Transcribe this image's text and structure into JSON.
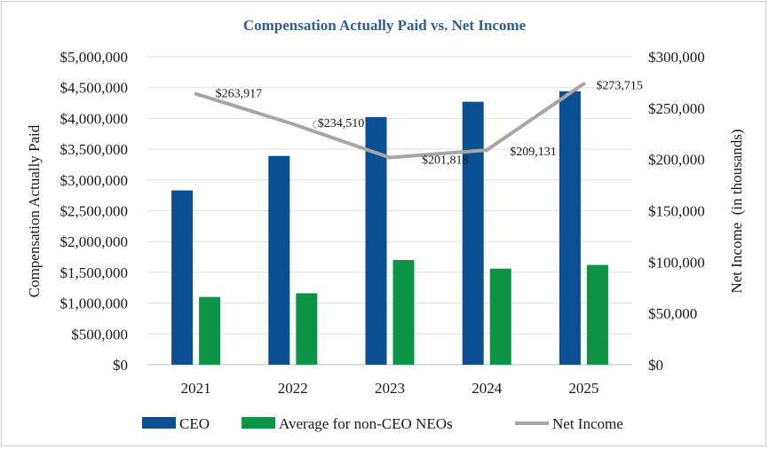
{
  "chart_data": {
    "type": "bar",
    "title": "Compensation Actually Paid vs. Net Income",
    "categories": [
      "2021",
      "2022",
      "2023",
      "2024",
      "2025"
    ],
    "ylabel": "Compensation Actually Paid",
    "y2label": "Net Income  (in thousands)",
    "ylim": [
      0,
      5000000
    ],
    "y2lim": [
      0,
      300000
    ],
    "y_ticks": [
      "$0",
      "$500,000",
      "$1,000,000",
      "$1,500,000",
      "$2,000,000",
      "$2,500,000",
      "$3,000,000",
      "$3,500,000",
      "$4,000,000",
      "$4,500,000",
      "$5,000,000"
    ],
    "y2_ticks": [
      "$0",
      "$50,000",
      "$100,000",
      "$150,000",
      "$200,000",
      "$250,000",
      "$300,000"
    ],
    "grid": true,
    "legend_position": "bottom",
    "series": [
      {
        "name": "CEO",
        "type": "bar",
        "axis": "left",
        "color": "#0a4f94",
        "values": [
          2830000,
          3390000,
          4020000,
          4270000,
          4440000
        ]
      },
      {
        "name": "Average for non-CEO NEOs",
        "type": "bar",
        "axis": "left",
        "color": "#0c9445",
        "values": [
          1100000,
          1160000,
          1700000,
          1560000,
          1620000
        ]
      },
      {
        "name": "Net Income",
        "type": "line",
        "axis": "right",
        "color": "#a6a6a6",
        "values": [
          263917,
          234510,
          201818,
          209131,
          273715
        ],
        "labels": [
          "$263,917",
          "$234,510",
          "$201,818",
          "$209,131",
          "$273,715"
        ]
      }
    ]
  }
}
